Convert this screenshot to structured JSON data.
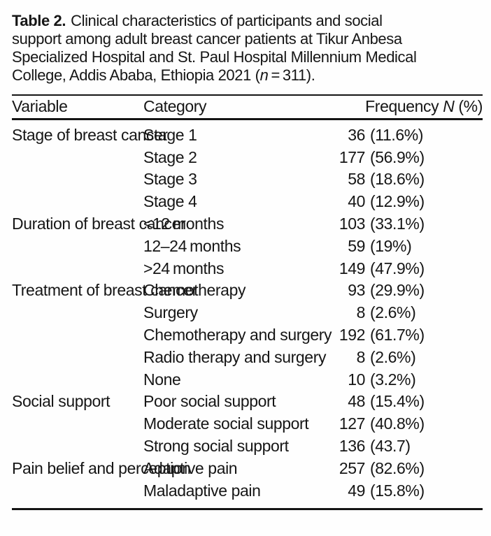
{
  "caption": {
    "bold_label": "Table 2.",
    "line1_rest": "Clinical characteristics of participants and social",
    "line2": "support among adult breast cancer patients at Tikur Anbesa",
    "line3": "Specialized Hospital and St. Paul Hospital Millennium Medical",
    "line4_pre": "College, Addis Ababa, Ethiopia 2021 (",
    "n_symbol": "n",
    "line4_post": " = 311)."
  },
  "table": {
    "headers": {
      "variable": "Variable",
      "category": "Category",
      "frequency_pre": "Frequency ",
      "frequency_n": "N",
      "frequency_post": " (%)"
    },
    "groups": [
      {
        "variable": "Stage of breast cancer",
        "rows": [
          {
            "category": "Stage 1",
            "n": "36",
            "pct": "(11.6%)"
          },
          {
            "category": "Stage 2",
            "n": "177",
            "pct": "(56.9%)"
          },
          {
            "category": "Stage 3",
            "n": "58",
            "pct": "(18.6%)"
          },
          {
            "category": "Stage 4",
            "n": "40",
            "pct": "(12.9%)"
          }
        ]
      },
      {
        "variable": "Duration of breast cancer",
        "rows": [
          {
            "category": "<12 months",
            "n": "103",
            "pct": "(33.1%)"
          },
          {
            "category": "12–24 months",
            "n": "59",
            "pct": "(19%)"
          },
          {
            "category": ">24 months",
            "n": "149",
            "pct": "(47.9%)"
          }
        ]
      },
      {
        "variable": "Treatment of breast cancer",
        "rows": [
          {
            "category": "Chemotherapy",
            "n": "93",
            "pct": "(29.9%)"
          },
          {
            "category": "Surgery",
            "n": "8",
            "pct": "(2.6%)"
          },
          {
            "category": "Chemotherapy and surgery",
            "n": "192",
            "pct": "(61.7%)"
          },
          {
            "category": "Radio therapy and surgery",
            "n": "8",
            "pct": "(2.6%)"
          },
          {
            "category": "None",
            "n": "10",
            "pct": "(3.2%)"
          }
        ]
      },
      {
        "variable": "Social support",
        "rows": [
          {
            "category": "Poor social support",
            "n": "48",
            "pct": "(15.4%)"
          },
          {
            "category": "Moderate social support",
            "n": "127",
            "pct": "(40.8%)"
          },
          {
            "category": "Strong social support",
            "n": "136",
            "pct": "(43.7)"
          }
        ]
      },
      {
        "variable": "Pain belief and perception",
        "rows": [
          {
            "category": "Adaptive pain",
            "n": "257",
            "pct": "(82.6%)"
          },
          {
            "category": "Maladaptive pain",
            "n": "49",
            "pct": "(15.8%)"
          }
        ]
      }
    ]
  },
  "colors": {
    "text": "#161616",
    "rule": "#141414",
    "background": "#fefefe"
  }
}
